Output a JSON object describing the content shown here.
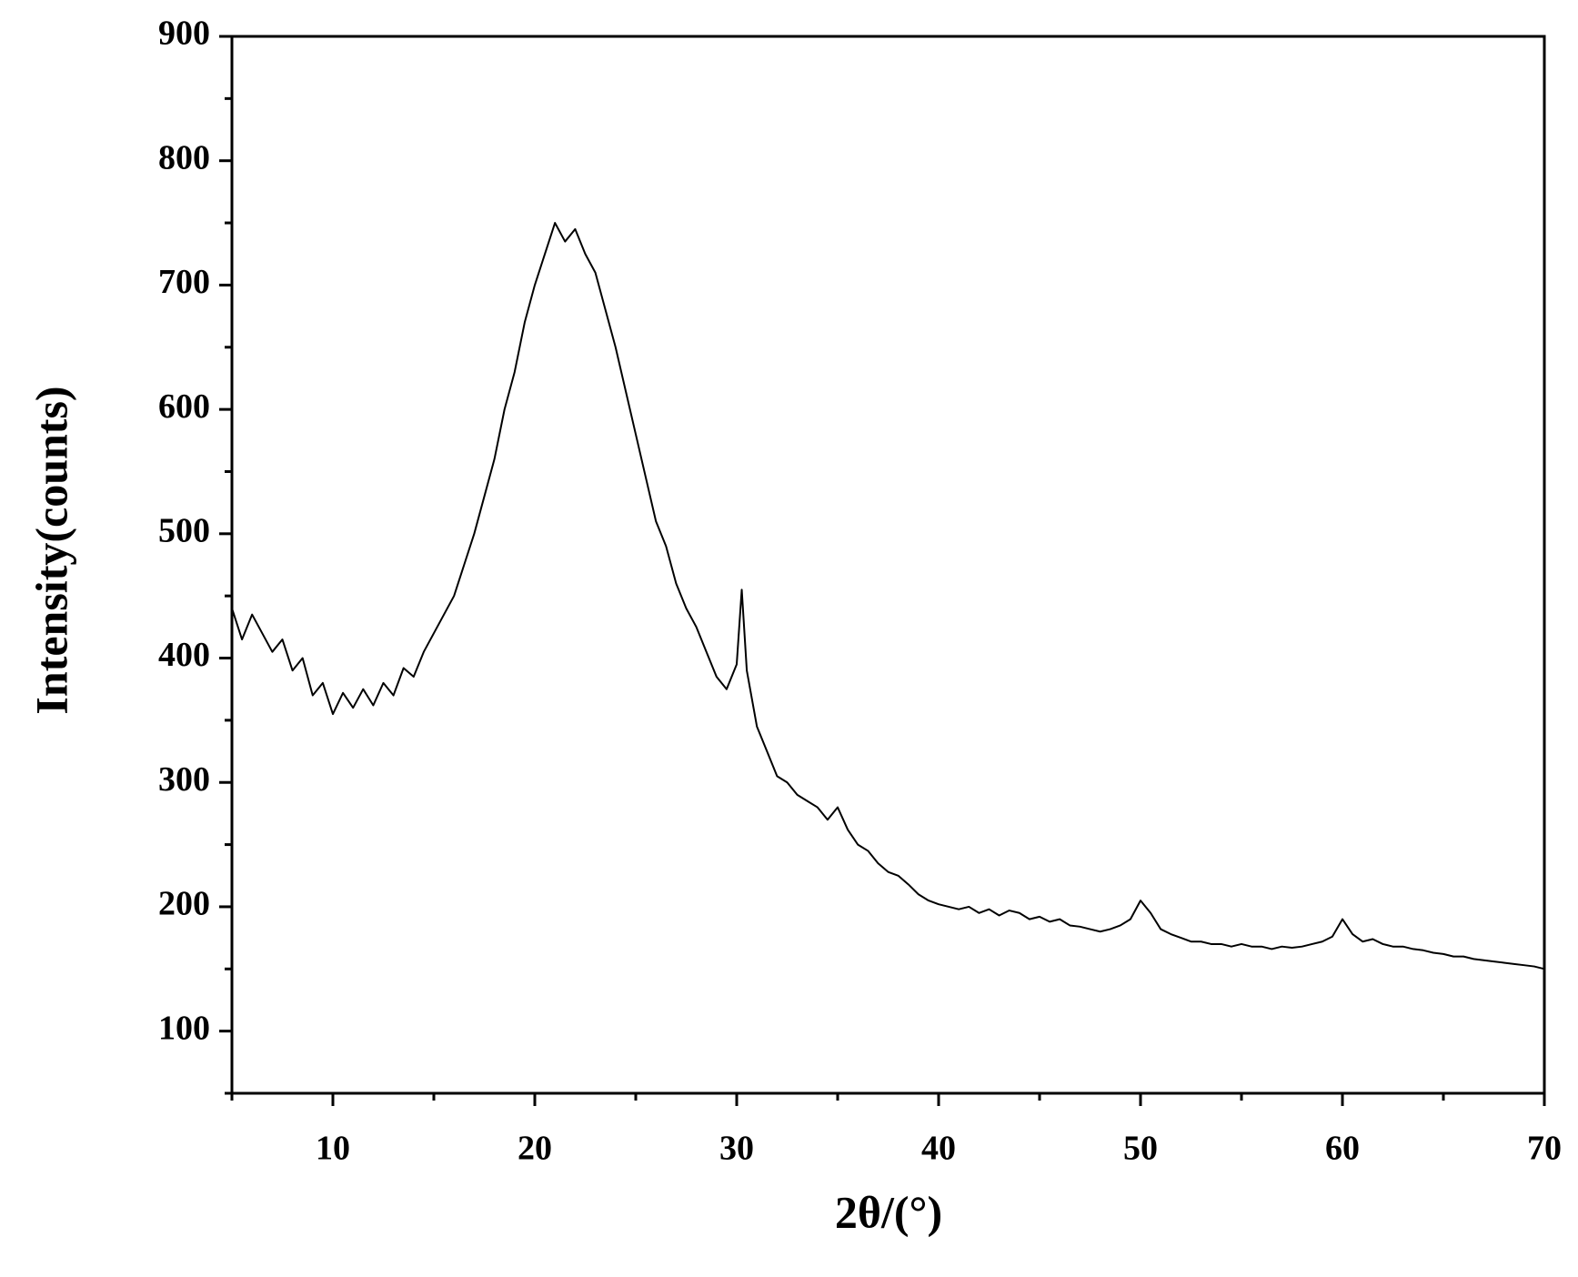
{
  "chart_data": {
    "type": "line",
    "x_label": "2θ/(°)",
    "y_label": "Intensity(counts)",
    "xlim": [
      5,
      70
    ],
    "ylim": [
      50,
      900
    ],
    "xticks": [
      10,
      20,
      30,
      40,
      50,
      60,
      70
    ],
    "yticks": [
      100,
      200,
      300,
      400,
      500,
      600,
      700,
      800,
      900
    ],
    "xminorticks": [
      5,
      15,
      25,
      35,
      45,
      55,
      65
    ],
    "yminorticks": [
      50,
      150,
      250,
      350,
      450,
      550,
      650,
      750,
      850
    ],
    "grid": false,
    "series": [
      {
        "color": "#000000",
        "x": [
          5,
          5.5,
          6,
          6.5,
          7,
          7.5,
          8,
          8.5,
          9,
          9.5,
          10,
          10.5,
          11,
          11.5,
          12,
          12.5,
          13,
          13.5,
          14,
          14.5,
          15,
          15.5,
          16,
          16.5,
          17,
          17.5,
          18,
          18.5,
          19,
          19.5,
          20,
          20.5,
          21,
          21.5,
          22,
          22.5,
          23,
          23.5,
          24,
          24.5,
          25,
          25.5,
          26,
          26.5,
          27,
          27.5,
          28,
          28.5,
          29,
          29.5,
          30,
          30.25,
          30.5,
          31,
          31.5,
          32,
          32.5,
          33,
          33.5,
          34,
          34.5,
          35,
          35.5,
          36,
          36.5,
          37,
          37.5,
          38,
          38.5,
          39,
          39.5,
          40,
          40.5,
          41,
          41.5,
          42,
          42.5,
          43,
          43.5,
          44,
          44.5,
          45,
          45.5,
          46,
          46.5,
          47,
          47.5,
          48,
          48.5,
          49,
          49.5,
          50,
          50.5,
          51,
          51.5,
          52,
          52.5,
          53,
          53.5,
          54,
          54.5,
          55,
          55.5,
          56,
          56.5,
          57,
          57.5,
          58,
          58.5,
          59,
          59.5,
          60,
          60.5,
          61,
          61.5,
          62,
          62.5,
          63,
          63.5,
          64,
          64.5,
          65,
          65.5,
          66,
          66.5,
          67,
          67.5,
          68,
          68.5,
          69,
          69.5,
          70
        ],
        "values": [
          440,
          415,
          435,
          420,
          405,
          415,
          390,
          400,
          370,
          380,
          355,
          372,
          360,
          375,
          362,
          380,
          370,
          392,
          385,
          405,
          420,
          435,
          450,
          475,
          500,
          530,
          560,
          600,
          630,
          670,
          700,
          725,
          750,
          735,
          745,
          725,
          710,
          680,
          650,
          615,
          580,
          545,
          510,
          490,
          460,
          440,
          425,
          405,
          385,
          375,
          395,
          455,
          390,
          345,
          325,
          305,
          300,
          290,
          285,
          280,
          270,
          280,
          262,
          250,
          245,
          235,
          228,
          225,
          218,
          210,
          205,
          202,
          200,
          198,
          200,
          195,
          198,
          193,
          197,
          195,
          190,
          192,
          188,
          190,
          185,
          184,
          182,
          180,
          182,
          185,
          190,
          205,
          195,
          182,
          178,
          175,
          172,
          172,
          170,
          170,
          168,
          170,
          168,
          168,
          166,
          168,
          167,
          168,
          170,
          172,
          176,
          190,
          178,
          172,
          174,
          170,
          168,
          168,
          166,
          165,
          163,
          162,
          160,
          160,
          158,
          157,
          156,
          155,
          154,
          153,
          152,
          150
        ]
      }
    ]
  }
}
